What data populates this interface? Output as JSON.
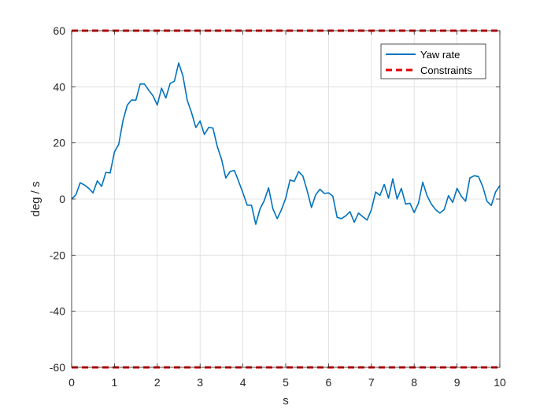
{
  "chart_data": {
    "type": "line",
    "xlabel": "s",
    "ylabel": "deg / s",
    "xlim": [
      0,
      10
    ],
    "ylim": [
      -60,
      60
    ],
    "xticks": [
      0,
      1,
      2,
      3,
      4,
      5,
      6,
      7,
      8,
      9,
      10
    ],
    "yticks": [
      -60,
      -40,
      -20,
      0,
      20,
      40,
      60
    ],
    "grid": true,
    "legend_position": "top-right",
    "series": [
      {
        "name": "Yaw rate",
        "color": "#0072BD",
        "style": "solid",
        "x": [
          0,
          0.1,
          0.2,
          0.3,
          0.4,
          0.5,
          0.6,
          0.7,
          0.8,
          0.9,
          1.0,
          1.1,
          1.2,
          1.3,
          1.4,
          1.5,
          1.6,
          1.7,
          1.8,
          1.9,
          2.0,
          2.1,
          2.2,
          2.3,
          2.4,
          2.5,
          2.6,
          2.7,
          2.8,
          2.9,
          3.0,
          3.1,
          3.2,
          3.3,
          3.4,
          3.5,
          3.6,
          3.7,
          3.8,
          3.9,
          4.0,
          4.1,
          4.2,
          4.3,
          4.4,
          4.5,
          4.6,
          4.7,
          4.8,
          4.9,
          5.0,
          5.1,
          5.2,
          5.3,
          5.4,
          5.5,
          5.6,
          5.7,
          5.8,
          5.9,
          6.0,
          6.1,
          6.2,
          6.3,
          6.4,
          6.5,
          6.6,
          6.7,
          6.8,
          6.9,
          7.0,
          7.1,
          7.2,
          7.3,
          7.4,
          7.5,
          7.6,
          7.7,
          7.8,
          7.9,
          8.0,
          8.1,
          8.2,
          8.3,
          8.4,
          8.5,
          8.6,
          8.7,
          8.8,
          8.9,
          9.0,
          9.1,
          9.2,
          9.3,
          9.4,
          9.5,
          9.6,
          9.7,
          9.8,
          9.9,
          10.0
        ],
        "y": [
          0,
          1.5,
          5.8,
          5,
          3.8,
          2.2,
          6.5,
          4.5,
          9.5,
          9.3,
          16.8,
          19.5,
          28,
          33.5,
          35.3,
          35.2,
          41,
          41,
          38.8,
          36.8,
          33.5,
          39.5,
          36,
          41.2,
          42,
          48.5,
          43.8,
          35.2,
          30.8,
          25.5,
          27.8,
          23,
          25.5,
          25.3,
          18.8,
          14.2,
          7.5,
          9.8,
          10.2,
          6.3,
          2.2,
          -2.2,
          -2.2,
          -9,
          -3.5,
          -0.5,
          4,
          -3.5,
          -7,
          -3.8,
          0.3,
          6.8,
          6.3,
          9.8,
          8.2,
          3,
          -3,
          1.5,
          3.5,
          2,
          2.2,
          1,
          -6.5,
          -7,
          -6,
          -4.5,
          -8.3,
          -5,
          -6.3,
          -7.5,
          -3.8,
          2.5,
          1.3,
          5.2,
          0.3,
          7.2,
          0,
          3.8,
          -1.8,
          -1.5,
          -4.8,
          -1.5,
          6,
          1.2,
          -1.8,
          -3.8,
          -5,
          -3.8,
          1.2,
          -1.2,
          3.8,
          1,
          -0.8,
          7.5,
          8.3,
          8,
          4.5,
          -0.8,
          -2.3,
          2.5,
          4.8
        ]
      },
      {
        "name": "Constraints",
        "color": "#E00000",
        "style": "dashed",
        "levels": [
          60,
          -60
        ]
      }
    ]
  }
}
